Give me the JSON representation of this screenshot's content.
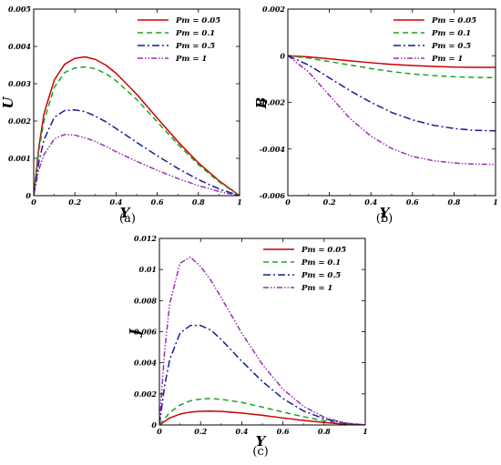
{
  "chart_data": [
    {
      "type": "line",
      "caption": "(a)",
      "xlabel": "Y",
      "ylabel": "U",
      "xlim": [
        0,
        1
      ],
      "ylim": [
        0,
        0.005
      ],
      "xticks": [
        0,
        0.2,
        0.4,
        0.6,
        0.8,
        1
      ],
      "xtick_labels": [
        "0",
        "0.2",
        "0.4",
        "0.6",
        "0.8",
        "1"
      ],
      "yticks": [
        0,
        0.001,
        0.002,
        0.003,
        0.004,
        0.005
      ],
      "ytick_labels": [
        "0",
        "0.001",
        "0.002",
        "0.003",
        "0.004",
        "0.005"
      ],
      "legend_position": "top-right",
      "grid": false,
      "series": [
        {
          "name": "Pm = 0.05",
          "color": "#cc0000",
          "dash": "solid",
          "x": [
            0,
            0.025,
            0.05,
            0.1,
            0.15,
            0.2,
            0.25,
            0.3,
            0.35,
            0.4,
            0.5,
            0.6,
            0.7,
            0.8,
            0.9,
            1.0
          ],
          "y": [
            0,
            0.0013,
            0.0022,
            0.0031,
            0.00352,
            0.00368,
            0.00372,
            0.00365,
            0.0035,
            0.00328,
            0.00272,
            0.00208,
            0.00145,
            0.00088,
            0.0004,
            0
          ]
        },
        {
          "name": "Pm = 0.1",
          "color": "#22a022",
          "dash": "6,4",
          "x": [
            0,
            0.025,
            0.05,
            0.1,
            0.15,
            0.2,
            0.25,
            0.3,
            0.35,
            0.4,
            0.5,
            0.6,
            0.7,
            0.8,
            0.9,
            1.0
          ],
          "y": [
            0,
            0.0012,
            0.002,
            0.0029,
            0.0033,
            0.00342,
            0.00345,
            0.0034,
            0.00327,
            0.00308,
            0.00258,
            0.00198,
            0.00138,
            0.00083,
            0.00037,
            0
          ]
        },
        {
          "name": "Pm = 0.5",
          "color": "#1a1a9a",
          "dash": "8,3,2,3",
          "x": [
            0,
            0.025,
            0.05,
            0.1,
            0.15,
            0.2,
            0.25,
            0.3,
            0.35,
            0.4,
            0.5,
            0.6,
            0.7,
            0.8,
            0.9,
            1.0
          ],
          "y": [
            0,
            0.0009,
            0.0015,
            0.0021,
            0.00228,
            0.0023,
            0.00225,
            0.00213,
            0.00198,
            0.0018,
            0.00143,
            0.00107,
            0.00073,
            0.00043,
            0.00018,
            0
          ]
        },
        {
          "name": "Pm = 1",
          "color": "#9a2fb0",
          "dash": "6,2,1.5,2,1.5,2",
          "x": [
            0,
            0.025,
            0.05,
            0.1,
            0.15,
            0.2,
            0.25,
            0.3,
            0.35,
            0.4,
            0.5,
            0.6,
            0.7,
            0.8,
            0.9,
            1.0
          ],
          "y": [
            0,
            0.0007,
            0.0011,
            0.00152,
            0.00164,
            0.00162,
            0.00155,
            0.00145,
            0.00132,
            0.00118,
            0.00092,
            0.00068,
            0.00046,
            0.00027,
            0.00011,
            0
          ]
        }
      ]
    },
    {
      "type": "line",
      "caption": "(b)",
      "xlabel": "Y",
      "ylabel": "B",
      "xlim": [
        0,
        1
      ],
      "ylim": [
        -0.006,
        0.002
      ],
      "xticks": [
        0,
        0.2,
        0.4,
        0.6,
        0.8,
        1
      ],
      "xtick_labels": [
        "0",
        "0.2",
        "0.4",
        "0.6",
        "0.8",
        "1"
      ],
      "yticks": [
        -0.006,
        -0.004,
        -0.002,
        0,
        0.002
      ],
      "ytick_labels": [
        "-0.006",
        "-0.004",
        "-0.002",
        "0",
        "0.002"
      ],
      "legend_position": "top-right",
      "grid": false,
      "series": [
        {
          "name": "Pm = 0.05",
          "color": "#cc0000",
          "dash": "solid",
          "x": [
            0,
            0.1,
            0.2,
            0.3,
            0.4,
            0.5,
            0.6,
            0.7,
            0.8,
            0.9,
            1.0
          ],
          "y": [
            0,
            -5e-05,
            -0.00013,
            -0.00022,
            -0.0003,
            -0.00037,
            -0.00042,
            -0.00046,
            -0.00049,
            -0.0005,
            -0.0005
          ]
        },
        {
          "name": "Pm = 0.1",
          "color": "#22a022",
          "dash": "6,4",
          "x": [
            0,
            0.1,
            0.2,
            0.3,
            0.4,
            0.5,
            0.6,
            0.7,
            0.8,
            0.9,
            1.0
          ],
          "y": [
            0,
            -0.0001,
            -0.00025,
            -0.0004,
            -0.00055,
            -0.00068,
            -0.00078,
            -0.00085,
            -0.0009,
            -0.00093,
            -0.00094
          ]
        },
        {
          "name": "Pm = 0.5",
          "color": "#1a1a9a",
          "dash": "8,3,2,3",
          "x": [
            0,
            0.1,
            0.2,
            0.3,
            0.4,
            0.5,
            0.6,
            0.7,
            0.8,
            0.9,
            1.0
          ],
          "y": [
            0,
            -0.0004,
            -0.00095,
            -0.0015,
            -0.002,
            -0.00243,
            -0.00275,
            -0.00298,
            -0.00312,
            -0.0032,
            -0.00322
          ]
        },
        {
          "name": "Pm = 1",
          "color": "#9a2fb0",
          "dash": "6,2,1.5,2,1.5,2",
          "x": [
            0,
            0.1,
            0.2,
            0.3,
            0.4,
            0.5,
            0.6,
            0.7,
            0.8,
            0.9,
            1.0
          ],
          "y": [
            0,
            -0.0007,
            -0.0017,
            -0.0027,
            -0.00345,
            -0.00398,
            -0.00432,
            -0.0045,
            -0.0046,
            -0.00465,
            -0.00466
          ]
        }
      ]
    },
    {
      "type": "line",
      "caption": "(c)",
      "xlabel": "Y",
      "ylabel": "J",
      "xlim": [
        0,
        1
      ],
      "ylim": [
        0,
        0.012
      ],
      "xticks": [
        0,
        0.2,
        0.4,
        0.6,
        0.8,
        1
      ],
      "xtick_labels": [
        "0",
        "0.2",
        "0.4",
        "0.6",
        "0.8",
        "1"
      ],
      "yticks": [
        0,
        0.002,
        0.004,
        0.006,
        0.008,
        0.01,
        0.012
      ],
      "ytick_labels": [
        "0",
        "0.002",
        "0.004",
        "0.006",
        "0.008",
        "0.01",
        "0.012"
      ],
      "legend_position": "top-right",
      "grid": false,
      "series": [
        {
          "name": "Pm = 0.05",
          "color": "#cc0000",
          "dash": "solid",
          "x": [
            0,
            0.05,
            0.1,
            0.15,
            0.2,
            0.25,
            0.3,
            0.4,
            0.5,
            0.6,
            0.7,
            0.8,
            0.9,
            1.0
          ],
          "y": [
            0,
            0.00045,
            0.0007,
            0.00083,
            0.00088,
            0.00089,
            0.00087,
            0.00077,
            0.00062,
            0.00045,
            0.00029,
            0.00016,
            5e-05,
            0
          ]
        },
        {
          "name": "Pm = 0.1",
          "color": "#22a022",
          "dash": "6,4",
          "x": [
            0,
            0.05,
            0.1,
            0.15,
            0.2,
            0.25,
            0.3,
            0.4,
            0.5,
            0.6,
            0.7,
            0.8,
            0.9,
            1.0
          ],
          "y": [
            0,
            0.0008,
            0.00128,
            0.00155,
            0.00167,
            0.0017,
            0.00165,
            0.00145,
            0.00115,
            0.00083,
            0.00053,
            0.00028,
            0.0001,
            0
          ]
        },
        {
          "name": "Pm = 0.5",
          "color": "#1a1a9a",
          "dash": "8,3,2,3",
          "x": [
            0,
            0.025,
            0.05,
            0.1,
            0.15,
            0.2,
            0.25,
            0.3,
            0.4,
            0.5,
            0.6,
            0.7,
            0.8,
            0.9,
            1.0
          ],
          "y": [
            0,
            0.0025,
            0.0042,
            0.0059,
            0.0064,
            0.0064,
            0.0061,
            0.0055,
            0.0041,
            0.0028,
            0.0017,
            0.0009,
            0.0004,
            0.00012,
            0
          ]
        },
        {
          "name": "Pm = 1",
          "color": "#9a2fb0",
          "dash": "6,2,1.5,2,1.5,2",
          "x": [
            0,
            0.025,
            0.05,
            0.1,
            0.15,
            0.2,
            0.25,
            0.3,
            0.4,
            0.5,
            0.6,
            0.7,
            0.8,
            0.9,
            1.0
          ],
          "y": [
            0,
            0.0047,
            0.0078,
            0.0104,
            0.0108,
            0.0102,
            0.0093,
            0.0082,
            0.0059,
            0.0039,
            0.0023,
            0.0012,
            0.0005,
            0.00013,
            0
          ]
        }
      ]
    }
  ]
}
